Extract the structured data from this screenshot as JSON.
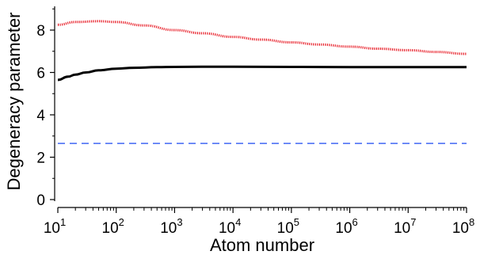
{
  "chart_data": {
    "type": "line",
    "xlabel": "Atom number",
    "ylabel": "Degeneracy parameter",
    "xscale": "log",
    "xlim": [
      10,
      100000000
    ],
    "ylim": [
      -0.2,
      9
    ],
    "x_ticks": [
      {
        "value": 10,
        "base": "10",
        "exp": "1"
      },
      {
        "value": 100,
        "base": "10",
        "exp": "2"
      },
      {
        "value": 1000,
        "base": "10",
        "exp": "3"
      },
      {
        "value": 10000,
        "base": "10",
        "exp": "4"
      },
      {
        "value": 100000,
        "base": "10",
        "exp": "5"
      },
      {
        "value": 1000000,
        "base": "10",
        "exp": "6"
      },
      {
        "value": 10000000,
        "base": "10",
        "exp": "7"
      },
      {
        "value": 100000000,
        "base": "10",
        "exp": "8"
      }
    ],
    "y_ticks": [
      {
        "value": 0,
        "label": "0"
      },
      {
        "value": 2,
        "label": "2"
      },
      {
        "value": 4,
        "label": "4"
      },
      {
        "value": 6,
        "label": "6"
      },
      {
        "value": 8,
        "label": "8"
      }
    ],
    "grid": false,
    "series": [
      {
        "style": "dotted",
        "color": "#e8202a",
        "x": [
          10,
          20,
          50,
          100,
          300,
          1000,
          3000,
          10000,
          30000,
          100000,
          300000,
          1000000,
          3000000,
          10000000,
          30000000,
          100000000
        ],
        "y": [
          8.25,
          8.38,
          8.42,
          8.38,
          8.22,
          8.0,
          7.85,
          7.68,
          7.55,
          7.42,
          7.32,
          7.22,
          7.12,
          7.05,
          6.97,
          6.88
        ]
      },
      {
        "style": "solid",
        "color": "#000000",
        "x": [
          10,
          15,
          20,
          30,
          50,
          100,
          200,
          500,
          1000,
          3000,
          10000,
          100000,
          1000000,
          10000000,
          100000000
        ],
        "y": [
          5.65,
          5.8,
          5.9,
          6.0,
          6.1,
          6.18,
          6.22,
          6.25,
          6.26,
          6.27,
          6.27,
          6.26,
          6.25,
          6.25,
          6.25
        ]
      },
      {
        "style": "dashed",
        "color": "#5b7cf5",
        "x": [
          10,
          100000000
        ],
        "y": [
          2.65,
          2.65
        ]
      }
    ]
  }
}
